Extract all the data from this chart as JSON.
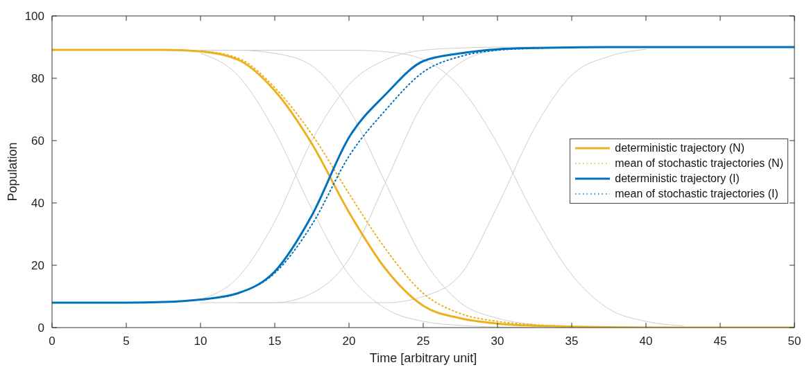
{
  "chart_data": {
    "type": "line",
    "xlabel": "Time [arbitrary unit]",
    "ylabel": "Population",
    "x": [
      0,
      2.5,
      5,
      7.5,
      10,
      12.5,
      15,
      17.5,
      20,
      22.5,
      25,
      27.5,
      30,
      32.5,
      35,
      37.5,
      40,
      42.5,
      45,
      47.5,
      50
    ],
    "xlim": [
      0,
      50
    ],
    "xticks": [
      0,
      5,
      10,
      15,
      20,
      25,
      30,
      35,
      40,
      45,
      50
    ],
    "ylim": [
      0,
      100
    ],
    "yticks": [
      0,
      20,
      40,
      60,
      80,
      100
    ],
    "legend": "right",
    "line_style": "solid",
    "series": [
      {
        "color": "#cccccc",
        "values": [
          null,
          null,
          null,
          null,
          88,
          81,
          63,
          38,
          17,
          6,
          2,
          0.7,
          0.2,
          0,
          null,
          null,
          null,
          null,
          null,
          null,
          null
        ]
      },
      {
        "color": "#cccccc",
        "values": [
          null,
          null,
          null,
          null,
          9,
          16,
          34,
          60,
          78,
          86,
          89,
          89.7,
          90,
          90,
          null,
          null,
          null,
          null,
          null,
          null,
          null
        ]
      },
      {
        "color": "#cccccc",
        "values": [
          null,
          null,
          null,
          null,
          89,
          89,
          88,
          84,
          70,
          46,
          22,
          8,
          3,
          1,
          null,
          null,
          null,
          null,
          null,
          null,
          null
        ]
      },
      {
        "color": "#cccccc",
        "values": [
          null,
          null,
          null,
          null,
          8,
          8,
          8,
          11,
          22,
          47,
          72,
          85,
          89,
          89.8,
          null,
          null,
          null,
          null,
          null,
          null,
          null
        ]
      },
      {
        "color": "#cccccc",
        "values": [
          null,
          null,
          null,
          null,
          null,
          89,
          89,
          89,
          89,
          88.5,
          86,
          77,
          59,
          36,
          17,
          6,
          2,
          0.6,
          null,
          null,
          null
        ]
      },
      {
        "color": "#cccccc",
        "values": [
          null,
          null,
          null,
          null,
          null,
          8,
          8,
          8,
          8,
          8,
          10,
          17,
          39,
          64,
          81,
          87,
          89.3,
          null,
          null,
          null,
          null
        ]
      },
      {
        "name": "deterministic trajectory (N)",
        "color": "#edb120",
        "values": [
          89.1,
          89.1,
          89.1,
          89.1,
          88.6,
          86,
          76,
          59,
          37,
          18.6,
          7,
          3,
          1.3,
          0.6,
          0.3,
          0.1,
          0,
          0,
          0,
          0,
          0
        ]
      },
      {
        "name": "mean of stochastic trajectories (N)",
        "color": "#edb120",
        "line_style": "dotted",
        "values": [
          89.1,
          89.1,
          89.1,
          89.1,
          88.7,
          86.5,
          77,
          62,
          43,
          25,
          11,
          4.5,
          2,
          0.9,
          0.4,
          0.2,
          0.1,
          0,
          0,
          0,
          0
        ]
      },
      {
        "name": "deterministic trajectory (I)",
        "color": "#0072bd",
        "values": [
          8,
          8,
          8,
          8.2,
          9,
          11,
          18,
          36,
          61,
          75,
          85.5,
          88,
          89.3,
          89.7,
          89.9,
          90,
          90,
          90,
          90,
          90,
          90
        ]
      },
      {
        "name": "mean of stochastic trajectories (I)",
        "color": "#0072bd",
        "line_style": "dotted",
        "values": [
          8,
          8,
          8,
          8.2,
          9,
          11,
          17.5,
          33,
          55,
          70,
          82,
          87,
          89,
          89.6,
          89.9,
          90,
          90,
          90,
          90,
          90,
          90
        ]
      }
    ]
  }
}
